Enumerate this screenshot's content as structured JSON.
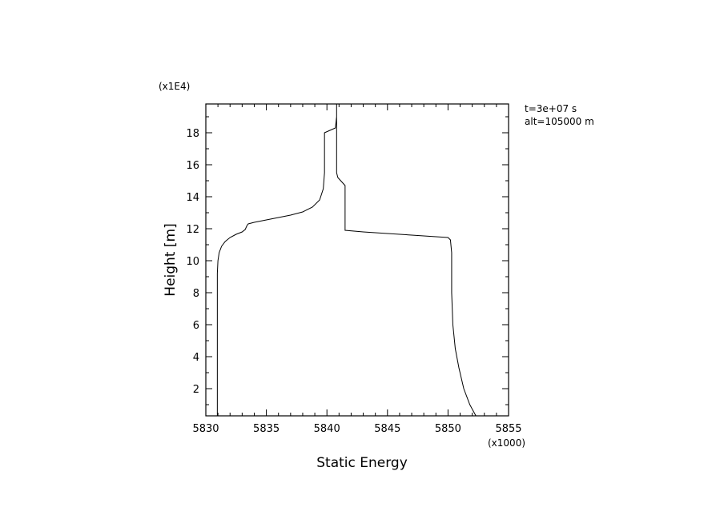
{
  "chart_data": {
    "type": "line",
    "xlabel": "Static Energy",
    "ylabel": "Height [m]",
    "x_multiplier_label": "(x1000)",
    "y_multiplier_label": "(x1E4)",
    "annotations": [
      "t=3e+07 s",
      "alt=105000 m"
    ],
    "xlim": [
      5830,
      5855
    ],
    "ylim": [
      0.3,
      19.8
    ],
    "x_ticks": [
      5830,
      5835,
      5840,
      5845,
      5850,
      5855
    ],
    "x_tick_labels": [
      "5830",
      "5835",
      "5840",
      "5845",
      "5850",
      "5855"
    ],
    "y_ticks": [
      2,
      4,
      6,
      8,
      10,
      12,
      14,
      16,
      18
    ],
    "y_tick_labels": [
      "2",
      "4",
      "6",
      "8",
      "10",
      "12",
      "14",
      "16",
      "18"
    ],
    "grid": false,
    "series": [
      {
        "x": [
          5830.95,
          5830.95,
          5831.0,
          5831.1,
          5831.3,
          5831.6,
          5832.0,
          5832.5,
          5833.0,
          5833.25,
          5833.4,
          5833.5,
          5834.0,
          5835.0,
          5836.0,
          5837.0,
          5838.0,
          5838.8,
          5839.4,
          5839.7,
          5839.8,
          5839.8,
          5839.8,
          5840.7,
          5840.8,
          5840.8,
          5840.8,
          5840.9,
          5841.5,
          5841.5,
          5841.5,
          5843.0,
          5845.0,
          5847.0,
          5849.0,
          5850.0,
          5850.2,
          5850.3,
          5850.3,
          5850.4,
          5850.6,
          5850.9,
          5851.3,
          5851.8,
          5852.3
        ],
        "y": [
          0.3,
          9.2,
          10.0,
          10.5,
          10.9,
          11.2,
          11.45,
          11.65,
          11.8,
          11.95,
          12.2,
          12.3,
          12.4,
          12.55,
          12.7,
          12.85,
          13.05,
          13.35,
          13.8,
          14.5,
          15.5,
          17.9,
          18.0,
          18.3,
          19.0,
          19.8,
          15.5,
          15.2,
          14.7,
          14.2,
          11.9,
          11.8,
          11.7,
          11.6,
          11.5,
          11.45,
          11.3,
          10.5,
          8.0,
          6.0,
          4.5,
          3.3,
          2.0,
          1.0,
          0.3
        ]
      }
    ]
  }
}
